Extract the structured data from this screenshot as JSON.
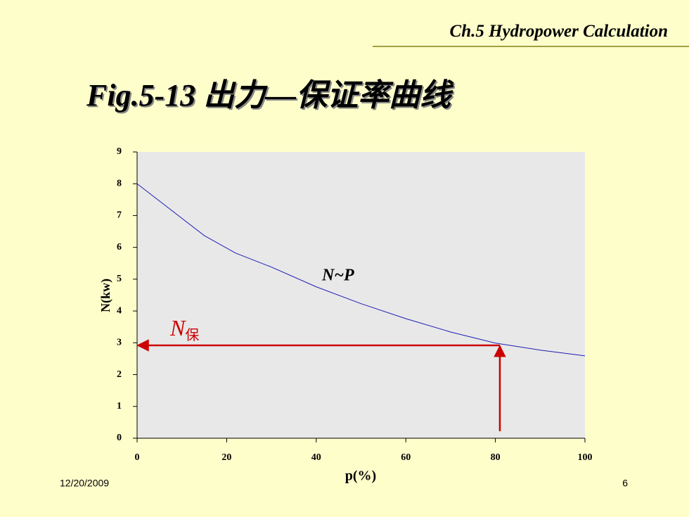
{
  "header": {
    "chapter": "Ch.5 Hydropower Calculation"
  },
  "footer": {
    "date": "12/20/2009",
    "page": "6"
  },
  "chart_data": {
    "type": "line",
    "title": "Fig.5-13 出力—保证率曲线",
    "x_label": "p(%)",
    "y_label": "N(kw)",
    "x": [
      0,
      15,
      22,
      30,
      40,
      50,
      60,
      70,
      80,
      90,
      100
    ],
    "series": [
      {
        "name": "N~P",
        "color": "#1f1fb4",
        "values": [
          8.0,
          6.37,
          5.82,
          5.38,
          4.76,
          4.23,
          3.76,
          3.34,
          2.99,
          2.77,
          2.59
        ]
      }
    ],
    "xlim": [
      0,
      100
    ],
    "xticks": [
      0,
      20,
      40,
      60,
      80,
      100
    ],
    "ylim": [
      0,
      9
    ],
    "yticks": [
      0,
      1,
      2,
      3,
      4,
      5,
      6,
      7,
      8,
      9
    ],
    "annotation": {
      "label": "N",
      "subscript": "保",
      "color": "#cc0000",
      "p": 81,
      "n": 2.92
    }
  }
}
